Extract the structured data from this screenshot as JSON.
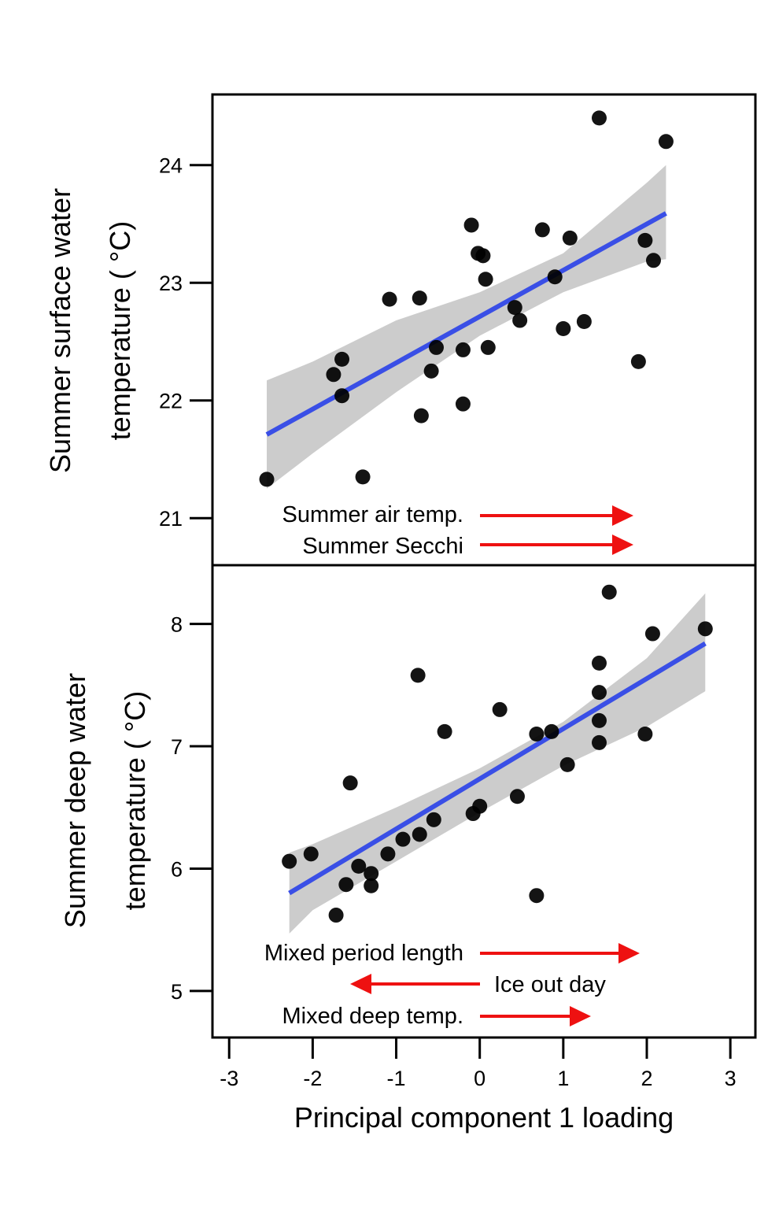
{
  "chart_data": [
    {
      "type": "scatter",
      "panel": "top",
      "ylabel_line1": "Summer surface water",
      "ylabel_line2": "temperature ( °C)",
      "ylim": [
        20.6,
        24.6
      ],
      "xlim": [
        -3.2,
        3.3
      ],
      "yticks": [
        "21",
        "22",
        "23",
        "24"
      ],
      "ytick_values": [
        21,
        22,
        23,
        24
      ],
      "grid": false,
      "points": [
        {
          "x": -2.55,
          "y": 21.33
        },
        {
          "x": -1.75,
          "y": 22.22
        },
        {
          "x": -1.65,
          "y": 22.35
        },
        {
          "x": -1.65,
          "y": 22.04
        },
        {
          "x": -1.4,
          "y": 21.35
        },
        {
          "x": -1.08,
          "y": 22.86
        },
        {
          "x": -0.72,
          "y": 22.87
        },
        {
          "x": -0.7,
          "y": 21.87
        },
        {
          "x": -0.58,
          "y": 22.25
        },
        {
          "x": -0.52,
          "y": 22.45
        },
        {
          "x": -0.2,
          "y": 22.43
        },
        {
          "x": -0.2,
          "y": 21.97
        },
        {
          "x": -0.1,
          "y": 23.49
        },
        {
          "x": -0.02,
          "y": 23.25
        },
        {
          "x": 0.04,
          "y": 23.23
        },
        {
          "x": 0.07,
          "y": 23.03
        },
        {
          "x": 0.1,
          "y": 22.45
        },
        {
          "x": 0.42,
          "y": 22.79
        },
        {
          "x": 0.48,
          "y": 22.68
        },
        {
          "x": 0.75,
          "y": 23.45
        },
        {
          "x": 0.9,
          "y": 23.05
        },
        {
          "x": 1.0,
          "y": 22.61
        },
        {
          "x": 1.08,
          "y": 23.38
        },
        {
          "x": 1.25,
          "y": 22.67
        },
        {
          "x": 1.43,
          "y": 24.4
        },
        {
          "x": 1.9,
          "y": 22.33
        },
        {
          "x": 1.98,
          "y": 23.36
        },
        {
          "x": 2.08,
          "y": 23.19
        },
        {
          "x": 2.23,
          "y": 24.2
        }
      ],
      "fit": {
        "x": [
          -2.55,
          2.23
        ],
        "y": [
          21.71,
          23.59
        ]
      },
      "ci_band": {
        "x": [
          -2.55,
          -2.0,
          -1.0,
          0.0,
          1.0,
          2.0,
          2.23
        ],
        "upper": [
          22.17,
          22.33,
          22.68,
          22.92,
          23.25,
          23.85,
          24.0
        ],
        "lower": [
          21.25,
          21.55,
          22.07,
          22.55,
          22.92,
          23.18,
          23.2
        ]
      },
      "annotations": [
        {
          "label": "Summer air temp.",
          "direction": "right"
        },
        {
          "label": "Summer Secchi",
          "direction": "right"
        }
      ],
      "colors": {
        "points": "#000000",
        "fit": "#3a4fe6",
        "band": "#cccccc",
        "arrow": "#ee1111"
      }
    },
    {
      "type": "scatter",
      "panel": "bottom",
      "ylabel_line1": "Summer deep water",
      "ylabel_line2": "temperature ( °C)",
      "xlabel": "Principal component 1 loading",
      "ylim": [
        4.62,
        8.48
      ],
      "xlim": [
        -3.2,
        3.3
      ],
      "yticks": [
        "5",
        "6",
        "7",
        "8"
      ],
      "ytick_values": [
        5,
        6,
        7,
        8
      ],
      "xticks": [
        "-3",
        "-2",
        "-1",
        "0",
        "1",
        "2",
        "3"
      ],
      "xtick_values": [
        -3,
        -2,
        -1,
        0,
        1,
        2,
        3
      ],
      "grid": false,
      "points": [
        {
          "x": -2.28,
          "y": 6.06
        },
        {
          "x": -2.02,
          "y": 6.12
        },
        {
          "x": -1.72,
          "y": 5.62
        },
        {
          "x": -1.6,
          "y": 5.87
        },
        {
          "x": -1.55,
          "y": 6.7
        },
        {
          "x": -1.45,
          "y": 6.02
        },
        {
          "x": -1.3,
          "y": 5.96
        },
        {
          "x": -1.3,
          "y": 5.86
        },
        {
          "x": -1.1,
          "y": 6.12
        },
        {
          "x": -0.92,
          "y": 6.24
        },
        {
          "x": -0.74,
          "y": 7.58
        },
        {
          "x": -0.72,
          "y": 6.28
        },
        {
          "x": -0.55,
          "y": 6.4
        },
        {
          "x": -0.42,
          "y": 7.12
        },
        {
          "x": -0.08,
          "y": 6.45
        },
        {
          "x": 0.0,
          "y": 6.51
        },
        {
          "x": 0.24,
          "y": 7.3
        },
        {
          "x": 0.45,
          "y": 6.59
        },
        {
          "x": 0.68,
          "y": 7.1
        },
        {
          "x": 0.68,
          "y": 5.78
        },
        {
          "x": 0.86,
          "y": 7.12
        },
        {
          "x": 1.05,
          "y": 6.85
        },
        {
          "x": 1.43,
          "y": 7.68
        },
        {
          "x": 1.43,
          "y": 7.44
        },
        {
          "x": 1.43,
          "y": 7.21
        },
        {
          "x": 1.43,
          "y": 7.03
        },
        {
          "x": 1.55,
          "y": 8.26
        },
        {
          "x": 1.98,
          "y": 7.1
        },
        {
          "x": 2.07,
          "y": 7.92
        },
        {
          "x": 2.7,
          "y": 7.96
        }
      ],
      "fit": {
        "x": [
          -2.28,
          2.7
        ],
        "y": [
          5.8,
          7.84
        ]
      },
      "ci_band": {
        "x": [
          -2.28,
          -2.0,
          -1.0,
          0.0,
          1.0,
          2.0,
          2.7
        ],
        "upper": [
          6.13,
          6.2,
          6.5,
          6.82,
          7.2,
          7.72,
          8.25
        ],
        "lower": [
          5.47,
          5.66,
          6.06,
          6.46,
          6.84,
          7.16,
          7.45
        ]
      },
      "annotations": [
        {
          "label": "Mixed period length",
          "direction": "right"
        },
        {
          "label": "Ice out day",
          "direction": "left"
        },
        {
          "label": "Mixed deep temp.",
          "direction": "right"
        }
      ],
      "colors": {
        "points": "#000000",
        "fit": "#3a4fe6",
        "band": "#cccccc",
        "arrow": "#ee1111"
      }
    }
  ]
}
